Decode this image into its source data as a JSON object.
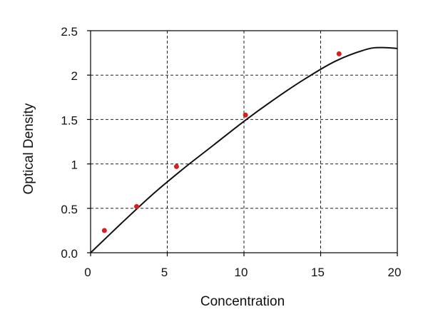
{
  "chart_data": {
    "type": "scatter",
    "title": "",
    "xlabel": "Concentration",
    "ylabel": "Optical Density",
    "xlim": [
      0,
      20
    ],
    "ylim": [
      0,
      2.5
    ],
    "x_ticks": [
      {
        "value": 0,
        "label": "0"
      },
      {
        "value": 5,
        "label": "5"
      },
      {
        "value": 10,
        "label": "10"
      },
      {
        "value": 15,
        "label": "15"
      },
      {
        "value": 20,
        "label": "20"
      }
    ],
    "y_ticks": [
      {
        "value": 0,
        "label": "0.0"
      },
      {
        "value": 0.5,
        "label": "0.5"
      },
      {
        "value": 1,
        "label": "1"
      },
      {
        "value": 1.5,
        "label": "1.5"
      },
      {
        "value": 2,
        "label": "2"
      },
      {
        "value": 2.5,
        "label": "2.5"
      }
    ],
    "grid": true,
    "grid_style": "dashed",
    "legend": "none",
    "series": [
      {
        "kind": "points",
        "color": "#d42020",
        "x": [
          0.9,
          3.0,
          5.6,
          10.1,
          16.2
        ],
        "y": [
          0.25,
          0.52,
          0.97,
          1.55,
          2.24
        ]
      },
      {
        "kind": "fitted-curve",
        "color": "#111111",
        "x": [
          0,
          2,
          4,
          6,
          8,
          10,
          12,
          14,
          16,
          18,
          19,
          20
        ],
        "y": [
          0.0,
          0.33,
          0.65,
          0.94,
          1.21,
          1.48,
          1.73,
          1.96,
          2.16,
          2.29,
          2.31,
          2.3
        ]
      }
    ]
  }
}
